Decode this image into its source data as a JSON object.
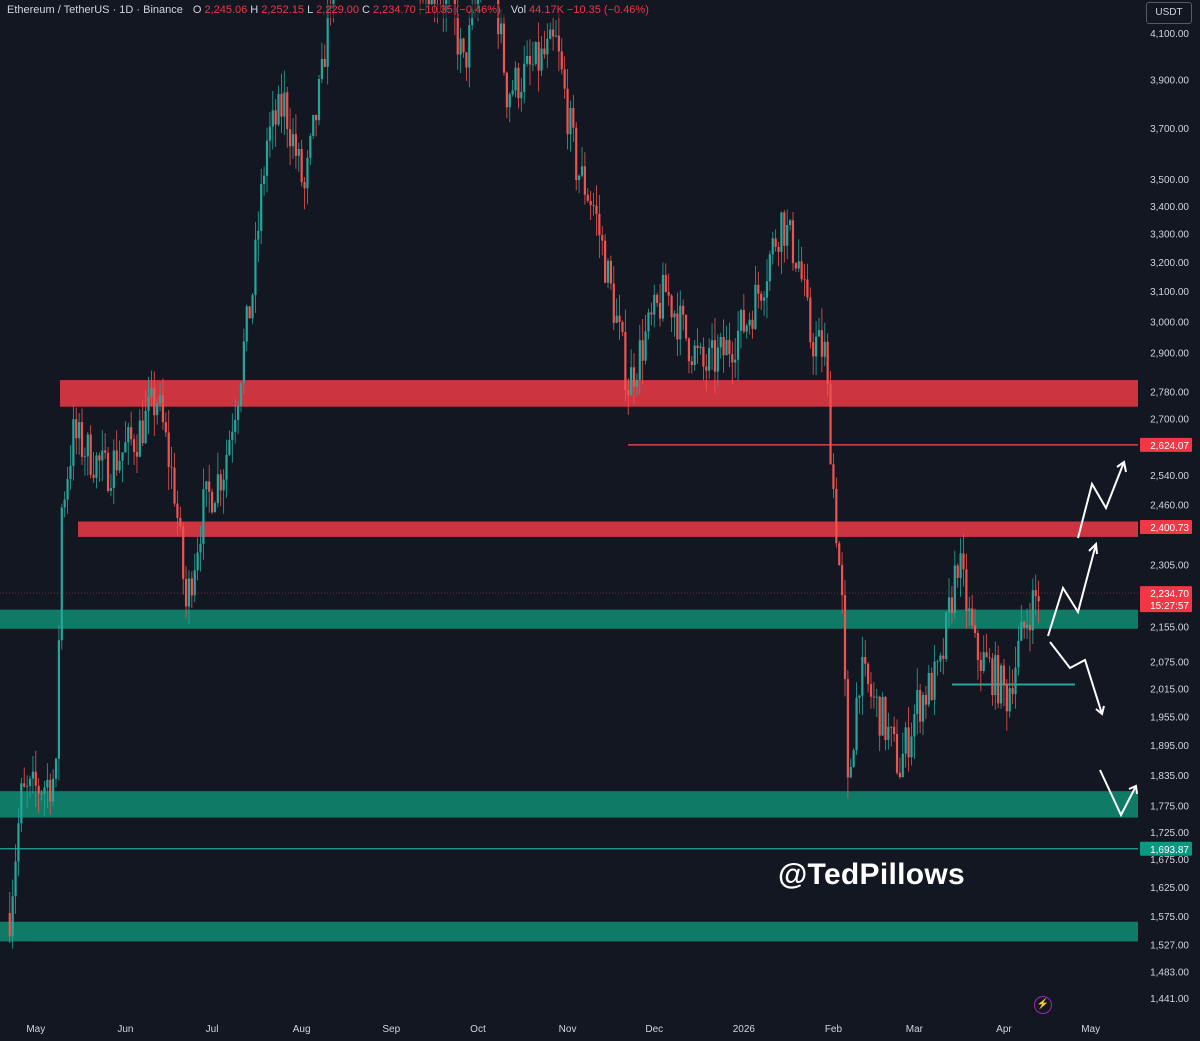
{
  "header": {
    "symbol": "Ethereum / TetherUS · 1D · Binance",
    "open_label": "O",
    "open": "2,245.06",
    "high_label": "H",
    "high": "2,252.15",
    "low_label": "L",
    "low": "2,229.00",
    "close_label": "C",
    "close": "2,234.70",
    "change": "−10.35 (−0.46%)",
    "vol_label": "Vol",
    "vol": "44.17K"
  },
  "currency": "USDT",
  "watermark": "@TedPillows",
  "colors": {
    "background": "#131722",
    "up": "#26a69a",
    "down": "#ef5350",
    "resistance": "#d63642",
    "support": "#0f7a66",
    "text": "#d1d4dc"
  },
  "chart_data": {
    "type": "candlestick",
    "y_scale": "log",
    "ylim": [
      1410,
      4250
    ],
    "y_ticks": [
      "4,100.00",
      "3,900.00",
      "3,700.00",
      "3,500.00",
      "3,400.00",
      "3,300.00",
      "3,200.00",
      "3,100.00",
      "3,000.00",
      "2,900.00",
      "2,780.00",
      "2,700.00",
      "2,540.00",
      "2,460.00",
      "2,305.00",
      "2,155.00",
      "2,075.00",
      "2,015.00",
      "1,955.00",
      "1,895.00",
      "1,835.00",
      "1,775.00",
      "1,725.00",
      "1,675.00",
      "1,625.00",
      "1,575.00",
      "1,527.00",
      "1,483.00",
      "1,441.00"
    ],
    "x_ticks": [
      "May",
      "Jun",
      "Jul",
      "Aug",
      "Sep",
      "Oct",
      "Nov",
      "Dec",
      "2026",
      "Feb",
      "Mar",
      "Apr",
      "May"
    ],
    "price_labels": [
      {
        "value": 2624.07,
        "text": "2,624.07",
        "kind": "resistance"
      },
      {
        "value": 2400.73,
        "text": "2,400.73",
        "kind": "resistance"
      },
      {
        "value": 2234.7,
        "text": "2,234.70",
        "kind": "current",
        "timer": "15:27:57"
      },
      {
        "value": 1693.87,
        "text": "1,693.87",
        "kind": "support"
      }
    ],
    "zones": [
      {
        "kind": "resistance",
        "low": 2735,
        "high": 2815
      },
      {
        "kind": "resistance",
        "low": 2375,
        "high": 2415
      },
      {
        "kind": "support",
        "low": 2150,
        "high": 2195
      },
      {
        "kind": "support",
        "low": 1752,
        "high": 1803
      },
      {
        "kind": "support",
        "low": 1532,
        "high": 1565
      }
    ],
    "lines": [
      {
        "kind": "resistance",
        "value": 2624.07
      },
      {
        "kind": "support",
        "value": 1693.87
      },
      {
        "kind": "support",
        "value": 2024
      }
    ],
    "series": [
      {
        "date": "2025-04-22",
        "close": 1580
      },
      {
        "date": "2025-04-26",
        "close": 1790
      },
      {
        "date": "2025-05-02",
        "close": 1810
      },
      {
        "date": "2025-05-08",
        "close": 1830
      },
      {
        "date": "2025-05-10",
        "close": 2450
      },
      {
        "date": "2025-05-14",
        "close": 2650
      },
      {
        "date": "2025-05-25",
        "close": 2550
      },
      {
        "date": "2025-06-05",
        "close": 2650
      },
      {
        "date": "2025-06-12",
        "close": 2760
      },
      {
        "date": "2025-06-18",
        "close": 2500
      },
      {
        "date": "2025-06-22",
        "close": 2200
      },
      {
        "date": "2025-06-28",
        "close": 2450
      },
      {
        "date": "2025-07-05",
        "close": 2560
      },
      {
        "date": "2025-07-10",
        "close": 2790
      },
      {
        "date": "2025-07-15",
        "close": 3100
      },
      {
        "date": "2025-07-20",
        "close": 3650
      },
      {
        "date": "2025-07-26",
        "close": 3800
      },
      {
        "date": "2025-08-02",
        "close": 3450
      },
      {
        "date": "2025-08-08",
        "close": 3900
      },
      {
        "date": "2025-08-13",
        "close": 4550
      },
      {
        "date": "2025-08-22",
        "close": 4800
      },
      {
        "date": "2025-08-28",
        "close": 4500
      },
      {
        "date": "2025-09-10",
        "close": 4400
      },
      {
        "date": "2025-09-22",
        "close": 4200
      },
      {
        "date": "2025-09-26",
        "close": 3950
      },
      {
        "date": "2025-10-05",
        "close": 4500
      },
      {
        "date": "2025-10-11",
        "close": 3850
      },
      {
        "date": "2025-10-20",
        "close": 3950
      },
      {
        "date": "2025-10-28",
        "close": 4050
      },
      {
        "date": "2025-11-04",
        "close": 3550
      },
      {
        "date": "2025-11-10",
        "close": 3400
      },
      {
        "date": "2025-11-18",
        "close": 3000
      },
      {
        "date": "2025-11-22",
        "close": 2800
      },
      {
        "date": "2025-11-28",
        "close": 2950
      },
      {
        "date": "2025-12-05",
        "close": 3100
      },
      {
        "date": "2025-12-12",
        "close": 2950
      },
      {
        "date": "2025-12-18",
        "close": 2850
      },
      {
        "date": "2025-12-25",
        "close": 2900
      },
      {
        "date": "2026-01-02",
        "close": 3000
      },
      {
        "date": "2026-01-08",
        "close": 3150
      },
      {
        "date": "2026-01-14",
        "close": 3350
      },
      {
        "date": "2026-01-20",
        "close": 3200
      },
      {
        "date": "2026-01-24",
        "close": 2950
      },
      {
        "date": "2026-01-29",
        "close": 2900
      },
      {
        "date": "2026-02-01",
        "close": 2500
      },
      {
        "date": "2026-02-04",
        "close": 2200
      },
      {
        "date": "2026-02-06",
        "close": 1800
      },
      {
        "date": "2026-02-10",
        "close": 2050
      },
      {
        "date": "2026-02-18",
        "close": 1950
      },
      {
        "date": "2026-02-24",
        "close": 1850
      },
      {
        "date": "2026-03-02",
        "close": 1980
      },
      {
        "date": "2026-03-10",
        "close": 2050
      },
      {
        "date": "2026-03-16",
        "close": 2320
      },
      {
        "date": "2026-03-22",
        "close": 2100
      },
      {
        "date": "2026-03-28",
        "close": 2050
      },
      {
        "date": "2026-04-02",
        "close": 2000
      },
      {
        "date": "2026-04-06",
        "close": 2100
      },
      {
        "date": "2026-04-10",
        "close": 2200
      },
      {
        "date": "2026-04-13",
        "close": 2235
      }
    ]
  }
}
